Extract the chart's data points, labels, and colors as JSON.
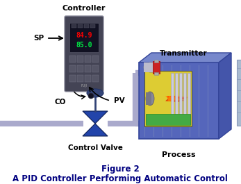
{
  "title_line1": "Figure 2",
  "title_line2": "A PID Controller Performing Automatic Control",
  "title_color": "#000080",
  "title_fontsize": 8.5,
  "background_color": "#ffffff",
  "labels": {
    "controller": "Controller",
    "sp": "SP",
    "pv": "PV",
    "co": "CO",
    "control_valve": "Control Valve",
    "transmitter": "Transmitter",
    "process": "Process"
  },
  "display_red": "84.9",
  "display_green": "85.0",
  "pipe_color": "#aaaacc",
  "valve_color": "#2244aa",
  "process_color": "#5566bb",
  "process_top_color": "#6677cc",
  "process_right_color": "#4455aa",
  "chimney_color": "#99aacc",
  "controller_body": "#444455",
  "controller_screen": "#111122",
  "window_yellow": "#ddcc33",
  "fire_red": "#dd2200",
  "fire_orange": "#ff8800",
  "green_base": "#338833",
  "tube_color": "#ccccdd"
}
